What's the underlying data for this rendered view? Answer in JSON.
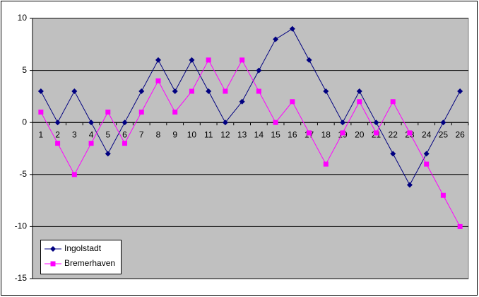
{
  "chart_data": {
    "type": "line",
    "categories": [
      "1",
      "2",
      "3",
      "4",
      "5",
      "6",
      "7",
      "8",
      "9",
      "10",
      "11",
      "12",
      "13",
      "14",
      "15",
      "16",
      "17",
      "18",
      "19",
      "20",
      "21",
      "22",
      "23",
      "24",
      "25",
      "26"
    ],
    "series": [
      {
        "name": "Ingolstadt",
        "color": "#000080",
        "marker": "diamond",
        "values": [
          3,
          0,
          3,
          0,
          -3,
          0,
          3,
          6,
          3,
          6,
          3,
          0,
          2,
          5,
          8,
          9,
          6,
          3,
          0,
          3,
          0,
          -3,
          -6,
          -3,
          0,
          3
        ]
      },
      {
        "name": "Bremerhaven",
        "color": "#ff00ff",
        "marker": "square",
        "values": [
          1,
          -2,
          -5,
          -2,
          1,
          -2,
          1,
          4,
          1,
          3,
          6,
          3,
          6,
          3,
          0,
          2,
          -1,
          -4,
          -1,
          2,
          -1,
          2,
          -1,
          -4,
          -7,
          -10
        ]
      }
    ],
    "ylim": [
      -15,
      10
    ],
    "yticks": [
      -15,
      -10,
      -5,
      0,
      5,
      10
    ],
    "grid": true,
    "legend": "bottom-left"
  }
}
